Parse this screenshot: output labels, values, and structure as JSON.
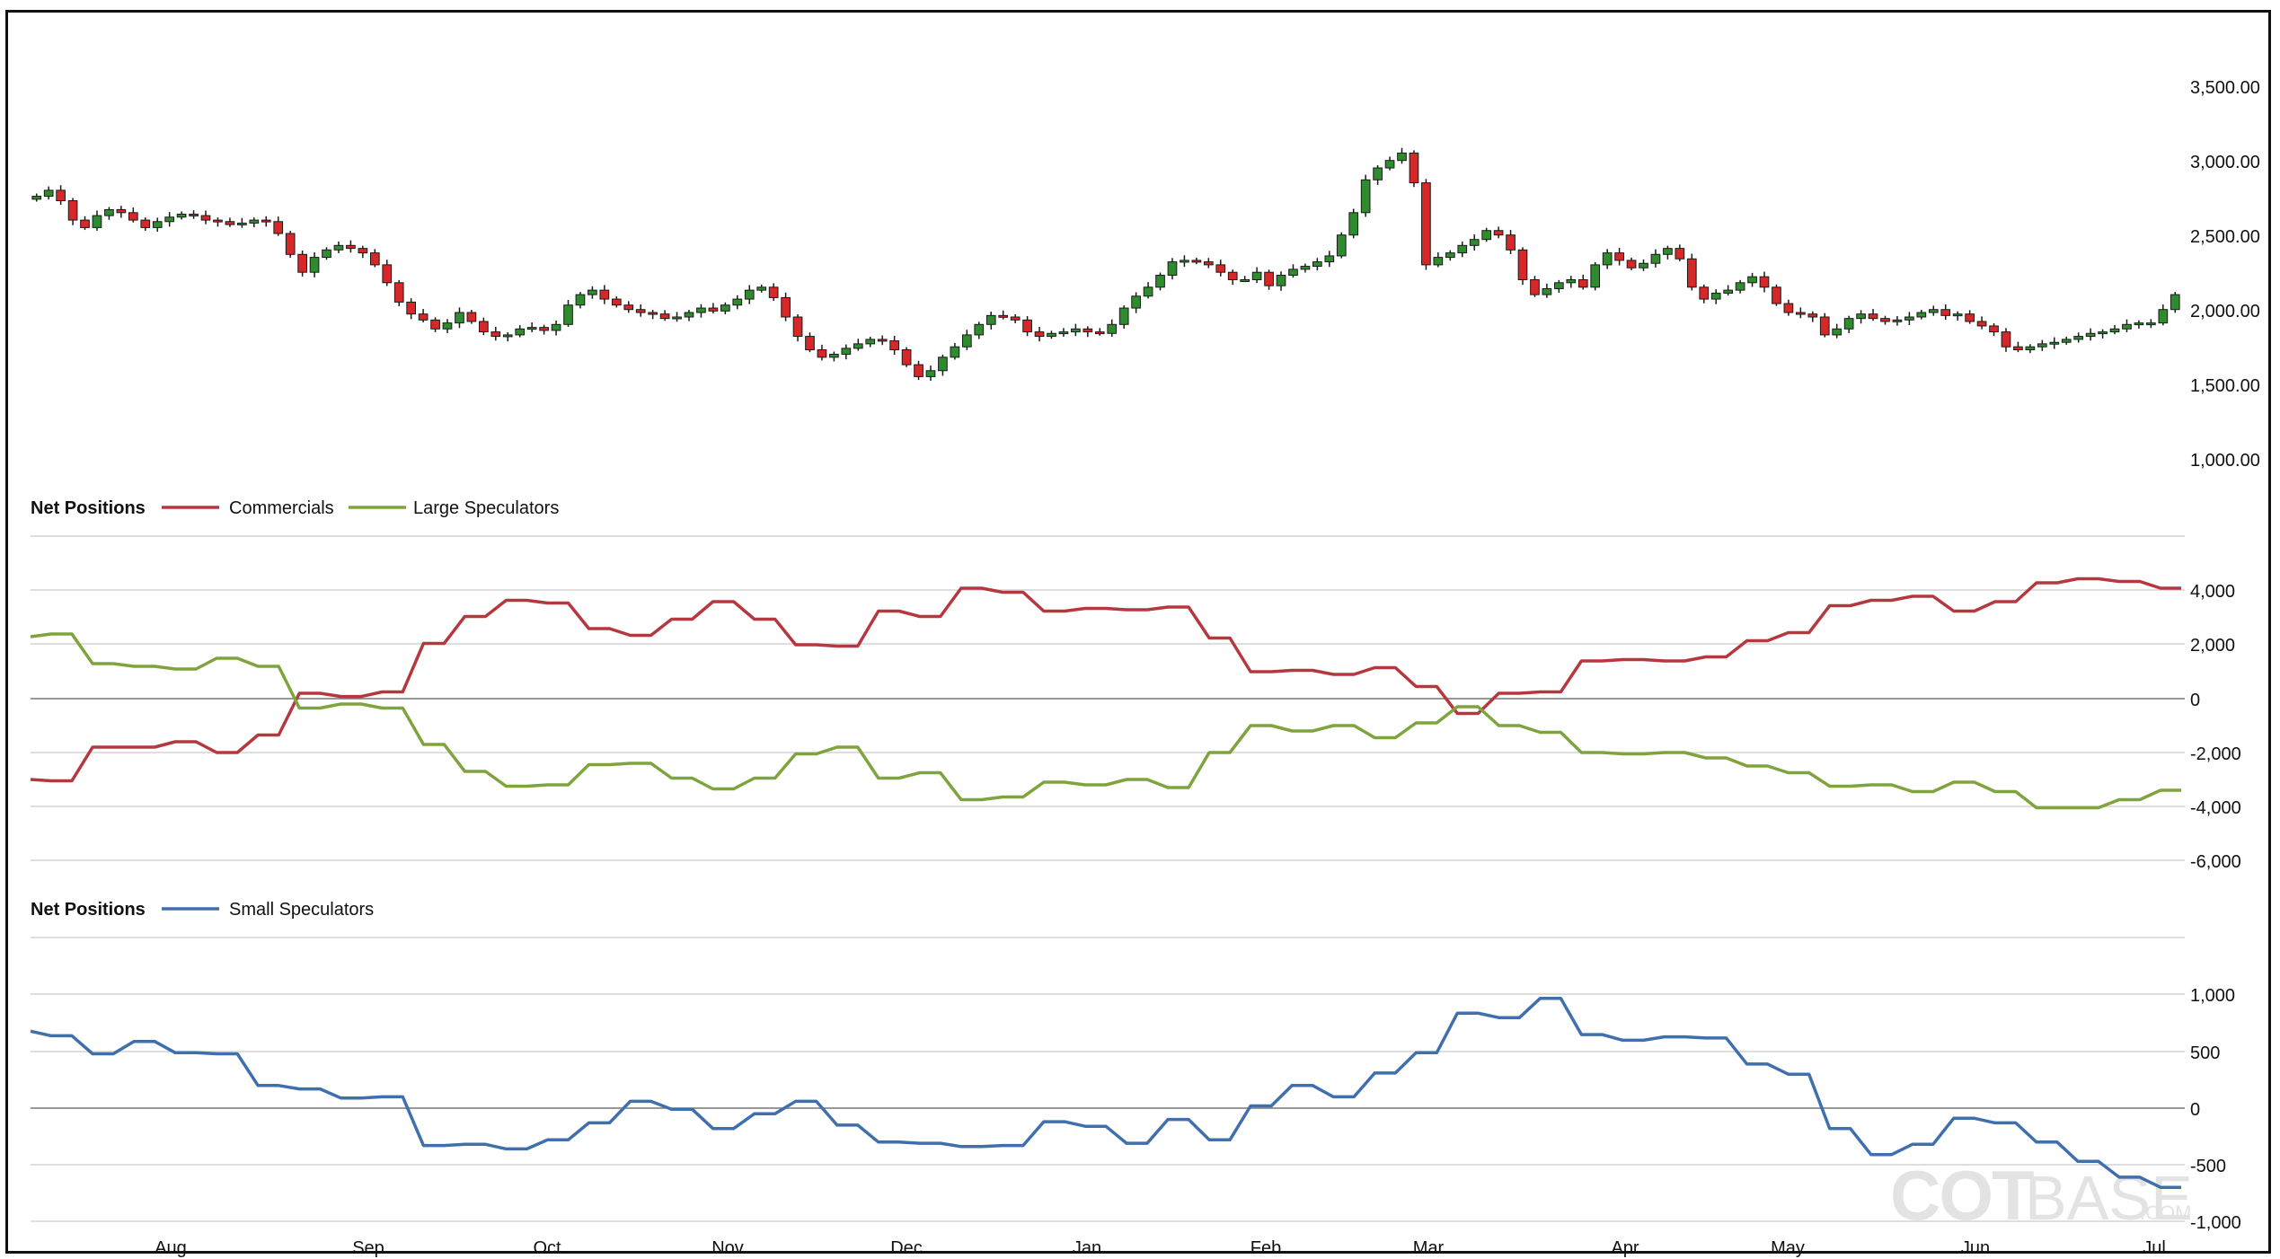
{
  "chart_data": [
    {
      "type": "candlestick",
      "title": "",
      "yticks": [
        "3,500.00",
        "3,000.00",
        "2,500.00",
        "2,000.00",
        "1,500.00",
        "1,000.00"
      ],
      "ylim": [
        1000,
        3500
      ],
      "close_series": [
        2810,
        2850,
        2780,
        2650,
        2600,
        2680,
        2720,
        2700,
        2650,
        2600,
        2640,
        2670,
        2690,
        2680,
        2650,
        2640,
        2620,
        2630,
        2650,
        2640,
        2560,
        2420,
        2300,
        2400,
        2450,
        2480,
        2460,
        2430,
        2350,
        2230,
        2100,
        2020,
        1980,
        1920,
        1960,
        2030,
        1970,
        1900,
        1870,
        1880,
        1920,
        1930,
        1910,
        1950,
        2080,
        2150,
        2180,
        2120,
        2080,
        2050,
        2030,
        2020,
        1990,
        2000,
        2030,
        2060,
        2040,
        2080,
        2120,
        2180,
        2200,
        2130,
        2000,
        1870,
        1780,
        1730,
        1750,
        1790,
        1820,
        1850,
        1840,
        1780,
        1680,
        1600,
        1640,
        1730,
        1800,
        1880,
        1950,
        2010,
        2000,
        1980,
        1900,
        1870,
        1890,
        1900,
        1920,
        1900,
        1890,
        1950,
        2060,
        2140,
        2200,
        2280,
        2370,
        2380,
        2370,
        2350,
        2300,
        2250,
        2250,
        2300,
        2210,
        2280,
        2320,
        2340,
        2370,
        2410,
        2550,
        2700,
        2920,
        3000,
        3050,
        3100,
        2900,
        2350,
        2400,
        2430,
        2480,
        2520,
        2580,
        2550,
        2450,
        2250,
        2150,
        2190,
        2230,
        2250,
        2200,
        2350,
        2430,
        2380,
        2330,
        2360,
        2420,
        2460,
        2390,
        2200,
        2120,
        2160,
        2180,
        2230,
        2270,
        2200,
        2090,
        2030,
        2020,
        2000,
        1880,
        1920,
        1990,
        2020,
        1990,
        1970,
        1980,
        2000,
        2030,
        2050,
        2010,
        2020,
        1970,
        1940,
        1900,
        1800,
        1780,
        1800,
        1820,
        1830,
        1850,
        1870,
        1890,
        1900,
        1920,
        1950,
        1960,
        1960,
        2050,
        2150
      ],
      "x_months": [
        "Aug",
        "Sep",
        "Oct",
        "Nov",
        "Dec",
        "Jan",
        "Feb",
        "Mar",
        "Apr",
        "May",
        "Jun",
        "Jul"
      ],
      "colors": {
        "up": "#2e8b2e",
        "down": "#d62828",
        "outline": "#1a1a1a"
      }
    },
    {
      "type": "line",
      "legend_title": "Net Positions",
      "yticks": [
        "4,000",
        "2,000",
        "0",
        "-2,000",
        "-4,000",
        "-6,000"
      ],
      "ylim": [
        -6000,
        6000
      ],
      "series": [
        {
          "name": "Commercials",
          "color": "#b5383f",
          "values": [
            -3000,
            -3050,
            -3050,
            -1800,
            -1800,
            -1800,
            -1800,
            -1600,
            -1600,
            -2000,
            -2000,
            -1350,
            -1350,
            200,
            200,
            80,
            80,
            250,
            250,
            2050,
            2050,
            3050,
            3050,
            3650,
            3650,
            3550,
            3550,
            2600,
            2600,
            2350,
            2350,
            2950,
            2950,
            3600,
            3600,
            2950,
            2950,
            2000,
            2000,
            1950,
            1950,
            3250,
            3250,
            3050,
            3050,
            4100,
            4100,
            3950,
            3950,
            3250,
            3250,
            3350,
            3350,
            3300,
            3300,
            3400,
            3400,
            2250,
            2250,
            1000,
            1000,
            1050,
            1050,
            900,
            900,
            1150,
            1150,
            450,
            450,
            -550,
            -550,
            200,
            200,
            250,
            250,
            1400,
            1400,
            1450,
            1450,
            1400,
            1400,
            1550,
            1550,
            2150,
            2150,
            2450,
            2450,
            3450,
            3450,
            3650,
            3650,
            3800,
            3800,
            3250,
            3250,
            3600,
            3600,
            4300,
            4300,
            4450,
            4450,
            4350,
            4350,
            4100,
            4100
          ]
        },
        {
          "name": "Large Speculators",
          "color": "#7fa33d",
          "values": [
            2300,
            2400,
            2400,
            1300,
            1300,
            1200,
            1200,
            1100,
            1100,
            1500,
            1500,
            1200,
            1200,
            -350,
            -350,
            -200,
            -200,
            -350,
            -350,
            -1700,
            -1700,
            -2700,
            -2700,
            -3250,
            -3250,
            -3200,
            -3200,
            -2450,
            -2450,
            -2400,
            -2400,
            -2950,
            -2950,
            -3350,
            -3350,
            -2950,
            -2950,
            -2050,
            -2050,
            -1800,
            -1800,
            -2950,
            -2950,
            -2750,
            -2750,
            -3750,
            -3750,
            -3650,
            -3650,
            -3100,
            -3100,
            -3200,
            -3200,
            -3000,
            -3000,
            -3300,
            -3300,
            -2000,
            -2000,
            -1000,
            -1000,
            -1200,
            -1200,
            -1000,
            -1000,
            -1450,
            -1450,
            -900,
            -900,
            -300,
            -300,
            -1000,
            -1000,
            -1250,
            -1250,
            -2000,
            -2000,
            -2050,
            -2050,
            -2000,
            -2000,
            -2200,
            -2200,
            -2500,
            -2500,
            -2750,
            -2750,
            -3250,
            -3250,
            -3200,
            -3200,
            -3450,
            -3450,
            -3100,
            -3100,
            -3450,
            -3450,
            -4050,
            -4050,
            -4050,
            -4050,
            -3750,
            -3750,
            -3400,
            -3400
          ]
        }
      ]
    },
    {
      "type": "line",
      "legend_title": "Net Positions",
      "yticks": [
        "1,000",
        "500",
        "0",
        "-500",
        "-1,000"
      ],
      "ylim": [
        -1000,
        1500
      ],
      "series": [
        {
          "name": "Small Speculators",
          "color": "#3f6fad",
          "values": [
            680,
            640,
            640,
            480,
            480,
            590,
            590,
            490,
            490,
            480,
            480,
            200,
            200,
            170,
            170,
            90,
            90,
            100,
            100,
            -330,
            -330,
            -320,
            -320,
            -360,
            -360,
            -280,
            -280,
            -130,
            -130,
            60,
            60,
            -10,
            -10,
            -180,
            -180,
            -50,
            -50,
            60,
            60,
            -150,
            -150,
            -300,
            -300,
            -310,
            -310,
            -340,
            -340,
            -330,
            -330,
            -120,
            -120,
            -160,
            -160,
            -310,
            -310,
            -100,
            -100,
            -280,
            -280,
            20,
            20,
            200,
            200,
            100,
            100,
            310,
            310,
            490,
            490,
            840,
            840,
            800,
            800,
            970,
            970,
            650,
            650,
            600,
            600,
            630,
            630,
            620,
            620,
            390,
            390,
            300,
            300,
            -180,
            -180,
            -410,
            -410,
            -320,
            -320,
            -90,
            -90,
            -130,
            -130,
            -300,
            -300,
            -470,
            -470,
            -610,
            -610,
            -700,
            -700
          ]
        }
      ]
    }
  ],
  "watermark": {
    "part1": "COT",
    "part2": "BASE",
    "part3": ".COM"
  }
}
